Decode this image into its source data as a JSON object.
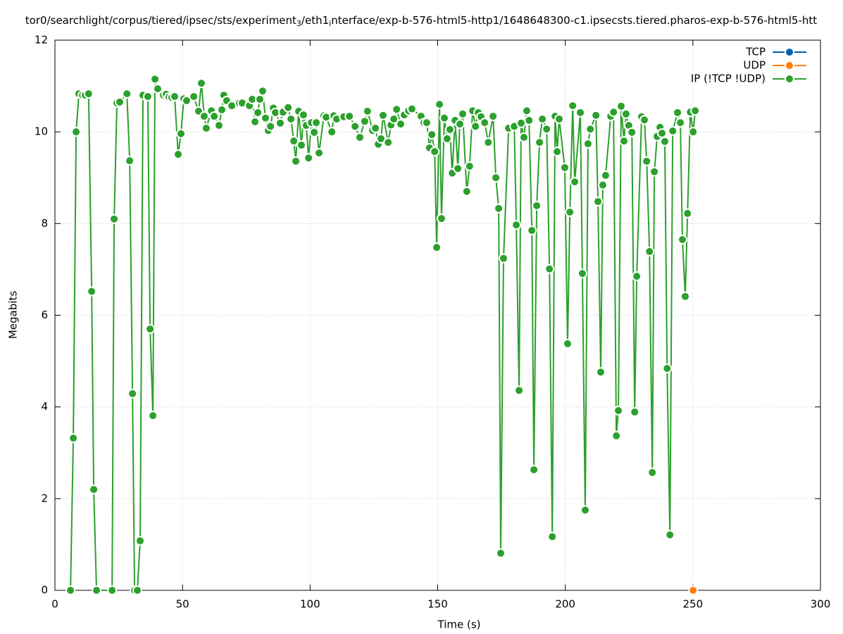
{
  "chart_data": {
    "type": "line",
    "title": [
      {
        "text": "tor0/searchlight/corpus/tiered/ipsec/sts/experiment"
      },
      {
        "text": "3",
        "sub": true
      },
      {
        "text": "/eth1"
      },
      {
        "text": "i",
        "sub": true
      },
      {
        "text": "nterface/exp-b-576-html5-http1/1648648300-c1.ipsecsts.tiered.pharos-exp-b-576-html5-htt"
      }
    ],
    "xlabel": "Time (s)",
    "ylabel": "Megabits",
    "xlim": [
      0,
      300
    ],
    "xticks": [
      0,
      50,
      100,
      150,
      200,
      250,
      300
    ],
    "ylim": [
      0,
      12
    ],
    "yticks": [
      0,
      2,
      4,
      6,
      8,
      10,
      12
    ],
    "grid": true,
    "legend": "top-right",
    "series": [
      {
        "name": "TCP",
        "color": "#0060ad",
        "x": [],
        "values": []
      },
      {
        "name": "UDP",
        "color": "#ff7f0e",
        "x": [
          250.1
        ],
        "values": [
          0
        ]
      },
      {
        "name": "IP (!TCP  !UDP)",
        "color": "#2ca02c",
        "x": [
          6.1,
          7.2,
          8.3,
          9.4,
          10.8,
          11.9,
          13.2,
          14.4,
          15.2,
          16.3,
          22.4,
          23.2,
          24.3,
          25.4,
          28.2,
          29.3,
          30.4,
          31.2,
          32.3,
          33.4,
          34.5,
          36.4,
          37.3,
          38.4,
          39.2,
          40.3,
          42.5,
          43.6,
          44.7,
          45.8,
          46.9,
          48.3,
          49.4,
          50.5,
          51.6,
          54.4,
          56.3,
          57.4,
          58.5,
          59.3,
          61.3,
          62.4,
          64.3,
          65.4,
          66.2,
          67.3,
          69.3,
          72.3,
          73.4,
          76.2,
          77.3,
          78.4,
          79.5,
          80.3,
          81.4,
          82.5,
          83.6,
          84.5,
          85.6,
          86.4,
          88.3,
          89.4,
          91.4,
          92.5,
          93.6,
          94.4,
          95.5,
          96.6,
          97.4,
          98.5,
          99.4,
          100.5,
          101.6,
          102.4,
          103.5,
          105.4,
          106.3,
          108.5,
          109.3,
          110.4,
          113.2,
          115.4,
          117.6,
          119.5,
          121.4,
          122.5,
          124.5,
          125.6,
          126.7,
          127.8,
          128.6,
          130.6,
          131.7,
          132.8,
          133.9,
          135.5,
          136.9,
          138.6,
          139.9,
          143.5,
          144.6,
          145.7,
          146.8,
          147.7,
          148.8,
          149.6,
          150.7,
          151.5,
          152.6,
          153.7,
          154.8,
          155.7,
          156.8,
          157.9,
          158.7,
          159.8,
          161.4,
          162.5,
          163.7,
          164.8,
          165.9,
          167.0,
          168.4,
          169.8,
          171.7,
          172.8,
          173.9,
          174.7,
          175.8,
          177.8,
          180.0,
          180.8,
          181.9,
          182.7,
          183.8,
          184.9,
          185.8,
          186.9,
          187.7,
          188.8,
          189.9,
          191.0,
          192.7,
          193.8,
          194.9,
          196.0,
          196.8,
          197.6,
          199.8,
          200.9,
          201.8,
          202.9,
          203.7,
          205.9,
          206.7,
          207.8,
          208.9,
          209.8,
          212.0,
          212.8,
          213.9,
          214.7,
          215.8,
          217.8,
          218.9,
          220.0,
          220.8,
          221.9,
          223.0,
          223.8,
          224.9,
          226.1,
          227.2,
          228.0,
          229.9,
          231.0,
          231.9,
          233.0,
          234.1,
          234.9,
          236.0,
          237.1,
          237.9,
          239.0,
          239.9,
          241.0,
          242.1,
          244.0,
          245.1,
          245.9,
          247.0,
          247.9,
          249.0,
          250.1,
          250.9
        ],
        "values": [
          0,
          3.32,
          10.0,
          10.83,
          10.8,
          10.8,
          10.83,
          6.52,
          2.2,
          0,
          0,
          8.1,
          10.63,
          10.65,
          10.83,
          9.37,
          4.29,
          0,
          0,
          1.08,
          10.8,
          10.77,
          5.7,
          3.81,
          11.15,
          10.94,
          10.8,
          10.82,
          10.76,
          10.75,
          10.77,
          9.51,
          9.96,
          10.72,
          10.68,
          10.77,
          10.45,
          11.06,
          10.34,
          10.08,
          10.46,
          10.34,
          10.14,
          10.48,
          10.8,
          10.68,
          10.57,
          10.63,
          10.63,
          10.57,
          10.71,
          10.22,
          10.42,
          10.71,
          10.89,
          10.3,
          10.03,
          10.12,
          10.52,
          10.42,
          10.19,
          10.43,
          10.53,
          10.28,
          9.8,
          9.36,
          10.45,
          9.71,
          10.37,
          10.14,
          9.43,
          10.2,
          9.99,
          10.2,
          9.54,
          10.35,
          10.32,
          10.0,
          10.35,
          10.28,
          10.33,
          10.34,
          10.12,
          9.88,
          10.23,
          10.45,
          10.03,
          10.08,
          9.73,
          9.85,
          10.36,
          9.77,
          10.15,
          10.28,
          10.49,
          10.17,
          10.37,
          10.46,
          10.5,
          10.34,
          10.2,
          10.2,
          9.65,
          9.94,
          9.57,
          7.48,
          10.6,
          8.11,
          10.3,
          9.85,
          10.05,
          9.1,
          10.25,
          9.2,
          10.17,
          10.39,
          8.7,
          9.25,
          10.46,
          10.12,
          10.42,
          10.33,
          10.2,
          9.77,
          10.34,
          9.0,
          8.33,
          0.81,
          7.24,
          10.08,
          10.12,
          7.97,
          4.36,
          10.19,
          9.88,
          10.46,
          10.25,
          7.85,
          2.63,
          8.39,
          9.77,
          10.28,
          10.06,
          7.01,
          1.17,
          10.34,
          9.57,
          10.28,
          9.22,
          5.38,
          8.25,
          10.57,
          8.91,
          10.42,
          6.91,
          1.75,
          9.74,
          10.06,
          10.36,
          8.48,
          4.76,
          8.84,
          9.05,
          10.34,
          10.43,
          3.37,
          3.92,
          10.56,
          9.8,
          10.39,
          10.14,
          9.99,
          3.89,
          6.85,
          10.33,
          10.26,
          9.36,
          7.39,
          2.57,
          9.13,
          9.9,
          10.1,
          9.97,
          9.79,
          4.84,
          1.21,
          10.02,
          10.42,
          10.2,
          7.65,
          6.41,
          8.22,
          10.43,
          10.0,
          10.46
        ]
      }
    ]
  }
}
